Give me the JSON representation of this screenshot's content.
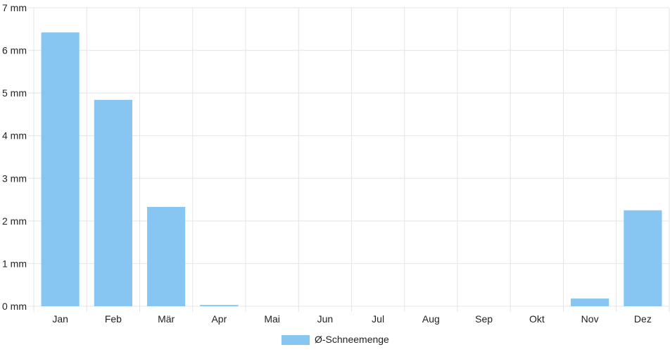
{
  "chart_data": {
    "type": "bar",
    "categories": [
      "Jan",
      "Feb",
      "Mär",
      "Apr",
      "Mai",
      "Jun",
      "Jul",
      "Aug",
      "Sep",
      "Okt",
      "Nov",
      "Dez"
    ],
    "series": [
      {
        "name": "Ø-Schneemenge",
        "values": [
          6.42,
          4.84,
          2.33,
          0.03,
          0,
          0,
          0,
          0,
          0,
          0,
          0.18,
          2.25
        ],
        "color": "#87c5f2"
      }
    ],
    "ylim": [
      0,
      7
    ],
    "y_ticks": [
      0,
      1,
      2,
      3,
      4,
      5,
      6,
      7
    ],
    "y_tick_labels": [
      "0 mm",
      "1 mm",
      "2 mm",
      "3 mm",
      "4 mm",
      "5 mm",
      "6 mm",
      "7 mm"
    ],
    "grid": true,
    "legend": "bottom-center"
  }
}
